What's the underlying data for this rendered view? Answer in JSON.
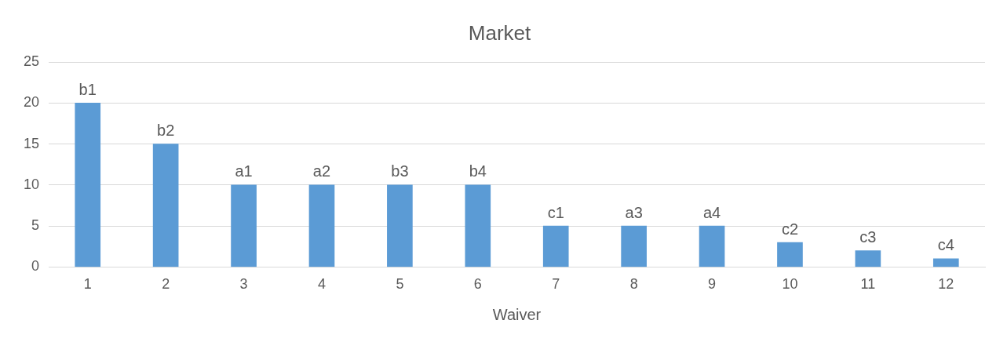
{
  "chart_data": {
    "type": "bar",
    "title": "Market",
    "xlabel": "Waiver",
    "x": [
      1,
      2,
      3,
      4,
      5,
      6,
      7,
      8,
      9,
      10,
      11,
      12
    ],
    "values": [
      20,
      15,
      10,
      10,
      10,
      10,
      5,
      5,
      5,
      3,
      2,
      1
    ],
    "value_labels": [
      "b1",
      "b2",
      "a1",
      "a2",
      "b3",
      "b4",
      "c1",
      "a3",
      "a4",
      "c2",
      "c3",
      "c4"
    ],
    "color": "#5b9bd5",
    "xlim": [
      0.5,
      12.5
    ],
    "xticks": [
      1,
      2,
      3,
      4,
      5,
      6,
      7,
      8,
      9,
      10,
      11,
      12
    ],
    "ylim": [
      0,
      25
    ],
    "yticks": [
      0,
      5,
      10,
      15,
      20,
      25
    ],
    "grid": "y",
    "legend": false
  }
}
